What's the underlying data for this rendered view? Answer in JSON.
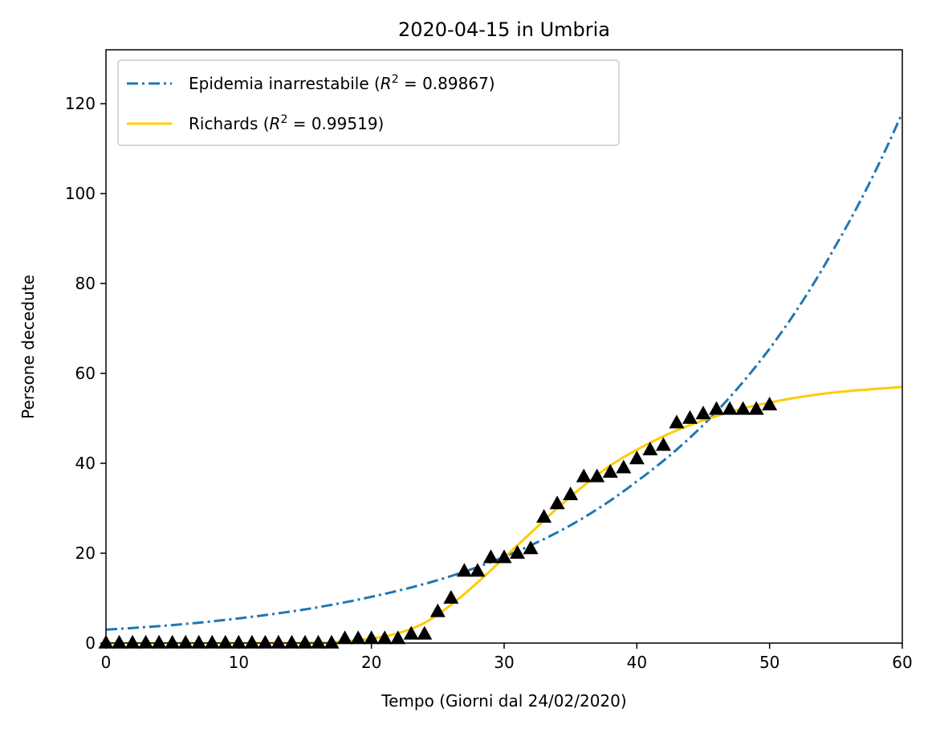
{
  "chart_data": {
    "type": "line",
    "title": "2020-04-15 in Umbria",
    "xlabel": "Tempo (Giorni dal 24/02/2020)",
    "ylabel": "Persone decedute",
    "xlim": [
      0,
      60
    ],
    "ylim": [
      0,
      132
    ],
    "xticks": [
      0,
      10,
      20,
      30,
      40,
      50,
      60
    ],
    "yticks": [
      0,
      20,
      40,
      60,
      80,
      100,
      120
    ],
    "grid": false,
    "legend_position": "top-left",
    "legend": [
      {
        "label": "Epidemia inarrestabile (R² = 0.89867)",
        "prefix": "Epidemia inarrestabile (",
        "r2": "R",
        "sup": "2",
        "value": " = 0.89867)",
        "color": "#1f77b4",
        "style": "dashdot"
      },
      {
        "label": "Richards (R² = 0.99519)",
        "prefix": "Richards (",
        "r2": "R",
        "sup": "2",
        "value": " = 0.99519)",
        "color": "#ffcc00",
        "style": "solid"
      }
    ],
    "series": [
      {
        "name": "Epidemia inarrestabile (R² = 0.89867)",
        "color": "#1f77b4",
        "style": "dashdot",
        "x": [
          0,
          5,
          10,
          15,
          20,
          25,
          30,
          35,
          40,
          45,
          50,
          55,
          60
        ],
        "y": [
          3.0,
          4.0,
          5.5,
          7.5,
          10.3,
          14.0,
          19.2,
          26.2,
          36.0,
          48.5,
          65.5,
          88.5,
          118.0
        ]
      },
      {
        "name": "Richards (R² = 0.99519)",
        "color": "#ffcc00",
        "style": "solid",
        "x": [
          0,
          16,
          18,
          20,
          22,
          24,
          26,
          28,
          30,
          32,
          34,
          36,
          38,
          40,
          42,
          44,
          46,
          48,
          50,
          52,
          55,
          60
        ],
        "y": [
          0,
          0.1,
          0.4,
          1.0,
          2.2,
          4.5,
          8.5,
          13.5,
          19.0,
          24.5,
          30.0,
          35.0,
          39.5,
          43.0,
          46.0,
          48.5,
          50.5,
          52.2,
          53.5,
          54.6,
          55.8,
          57.0
        ]
      },
      {
        "name": "",
        "color": "#000000",
        "style": "markers-triangle",
        "x": [
          0,
          1,
          2,
          3,
          4,
          5,
          6,
          7,
          8,
          9,
          10,
          11,
          12,
          13,
          14,
          15,
          16,
          17,
          18,
          19,
          20,
          21,
          22,
          23,
          24,
          25,
          26,
          27,
          28,
          29,
          30,
          31,
          32,
          33,
          34,
          35,
          36,
          37,
          38,
          39,
          40,
          41,
          42,
          43,
          44,
          45,
          46,
          47,
          48,
          49,
          50
        ],
        "y": [
          0,
          0,
          0,
          0,
          0,
          0,
          0,
          0,
          0,
          0,
          0,
          0,
          0,
          0,
          0,
          0,
          0,
          0,
          1,
          1,
          1,
          1,
          1,
          2,
          2,
          7,
          10,
          16,
          16,
          19,
          19,
          20,
          21,
          28,
          31,
          33,
          37,
          37,
          38,
          39,
          41,
          43,
          44,
          49,
          50,
          51,
          52,
          52,
          52,
          52,
          53
        ]
      }
    ]
  }
}
